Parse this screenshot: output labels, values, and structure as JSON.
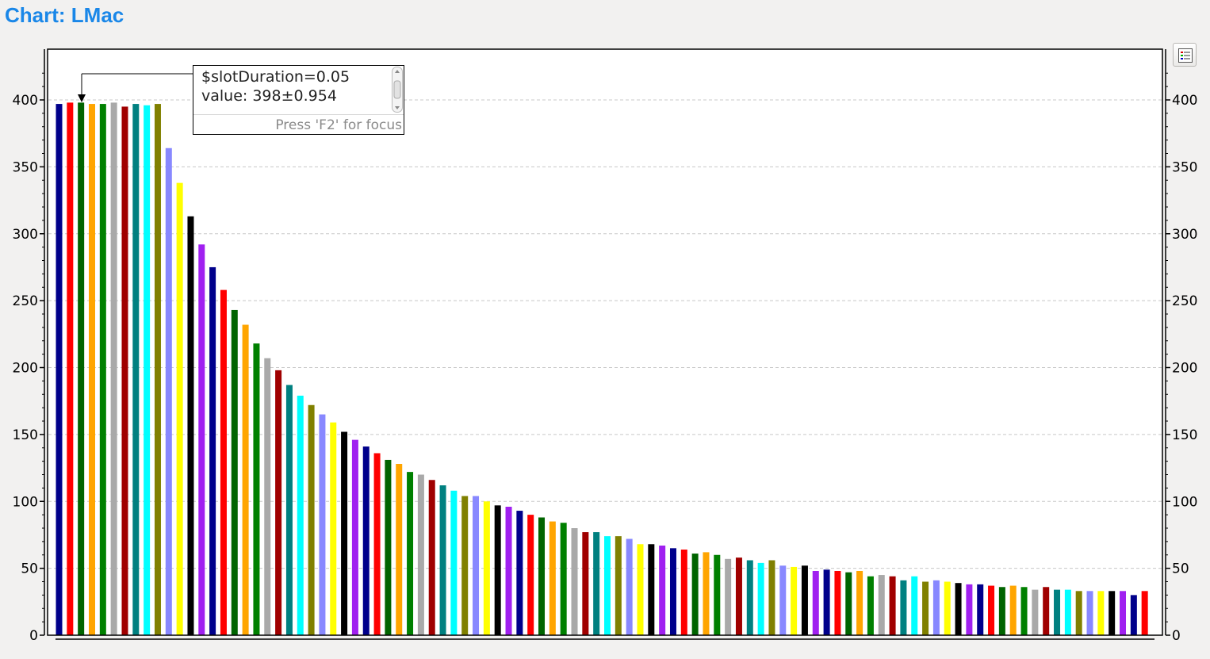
{
  "title": "Chart: LMac",
  "tooltip": {
    "line1": "$slotDuration=0.05",
    "line2": "value: 398±0.954",
    "hint": "Press 'F2' for focus"
  },
  "legend_button": {
    "icon": "legend-list-icon"
  },
  "chart_data": {
    "type": "bar",
    "title": "",
    "xlabel": "",
    "ylabel": "",
    "ylim": [
      0,
      430
    ],
    "yticks": [
      0,
      50,
      100,
      150,
      200,
      250,
      300,
      350,
      400
    ],
    "grid": true,
    "y_axis_both_sides": true,
    "color_cycle": [
      "#00008b",
      "#ff0000",
      "#006400",
      "#ffa500",
      "#008000",
      "#a9a9a9",
      "#a00000",
      "#008080",
      "#00ffff",
      "#808000",
      "#8888ff",
      "#ffff00",
      "#000000",
      "#a020f0"
    ],
    "values": [
      397,
      398,
      398,
      397,
      397,
      398,
      395,
      397,
      396,
      397,
      364,
      338,
      313,
      292,
      275,
      258,
      243,
      232,
      218,
      207,
      198,
      187,
      179,
      172,
      165,
      159,
      152,
      146,
      141,
      136,
      131,
      128,
      122,
      120,
      116,
      112,
      108,
      104,
      104,
      100,
      97,
      96,
      93,
      90,
      88,
      85,
      84,
      80,
      77,
      77,
      74,
      74,
      72,
      68,
      68,
      67,
      65,
      64,
      61,
      62,
      60,
      57,
      58,
      56,
      54,
      56,
      52,
      51,
      52,
      48,
      49,
      48,
      47,
      48,
      44,
      45,
      44,
      41,
      44,
      40,
      41,
      40,
      39,
      38,
      38,
      37,
      36,
      37,
      36,
      34,
      36,
      34,
      34,
      33,
      33,
      33,
      33,
      33,
      30,
      33
    ]
  }
}
